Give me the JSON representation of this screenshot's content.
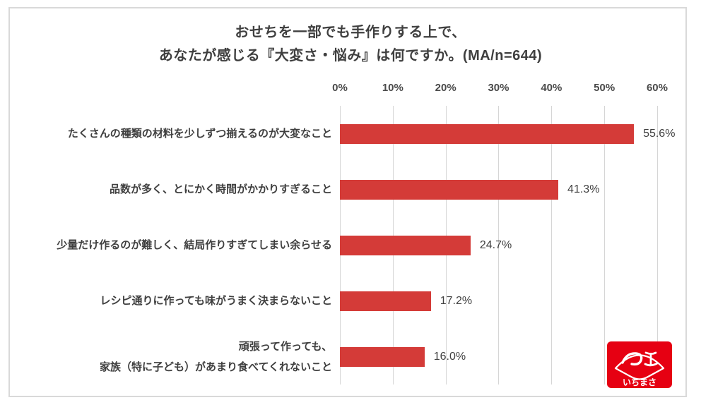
{
  "title": {
    "line1": "おせちを一部でも手作りする上で、",
    "line2": "あなたが感じる『大変さ・悩み』は何ですか。(MA/n=644)"
  },
  "chart_data": {
    "type": "bar",
    "orientation": "horizontal",
    "categories": [
      "たくさんの種類の材料を少しずつ揃えるのが大変なこと",
      "品数が多く、とにかく時間がかかりすぎること",
      "少量だけ作るのが難しく、結局作りすぎてしまい余らせる",
      "レシピ通りに作っても味がうまく決まらないこと",
      "頑張って作っても、\n家族（特に子ども）があまり食べてくれないこと"
    ],
    "values": [
      55.6,
      41.3,
      24.7,
      17.2,
      16.0
    ],
    "value_labels": [
      "55.6%",
      "41.3%",
      "24.7%",
      "17.2%",
      "16.0%"
    ],
    "xlim": [
      0,
      60
    ],
    "x_ticks": [
      "0%",
      "10%",
      "20%",
      "30%",
      "40%",
      "50%",
      "60%"
    ],
    "x_tick_values": [
      0,
      10,
      20,
      30,
      40,
      50,
      60
    ],
    "bar_color": "#d43b38",
    "gridline_color": "#d6d6d6",
    "grid": true,
    "legend": "none"
  },
  "logo": {
    "brand": "いちまさ",
    "color": "#e60012"
  }
}
